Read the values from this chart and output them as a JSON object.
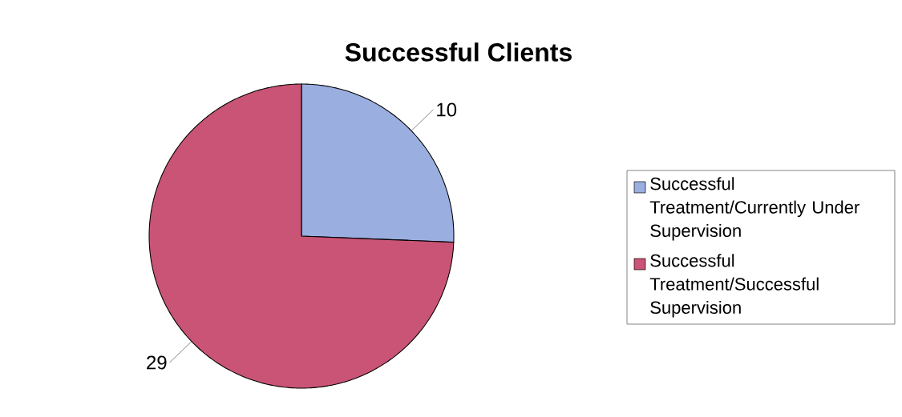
{
  "chart_data": {
    "type": "pie",
    "title": "Successful Clients",
    "categories": [
      "Successful Treatment/Currently Under Supervision",
      "Successful Treatment/Successful Supervision"
    ],
    "values": [
      10,
      29
    ],
    "colors": [
      "#9aaee0",
      "#c95475"
    ],
    "data_labels": true,
    "legend": "right"
  }
}
